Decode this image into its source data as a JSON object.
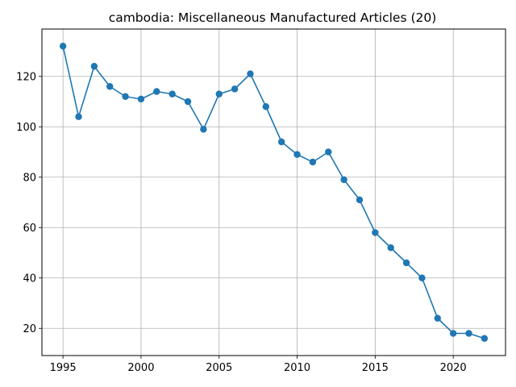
{
  "chart_data": {
    "type": "line",
    "title": "cambodia: Miscellaneous Manufactured Articles (20)",
    "xlabel": "",
    "ylabel": "",
    "x": [
      1995,
      1996,
      1997,
      1998,
      1999,
      2000,
      2001,
      2002,
      2003,
      2004,
      2005,
      2006,
      2007,
      2008,
      2009,
      2010,
      2011,
      2012,
      2013,
      2014,
      2015,
      2016,
      2017,
      2018,
      2019,
      2020,
      2021,
      2022
    ],
    "series": [
      {
        "values": [
          132,
          104,
          124,
          116,
          112,
          111,
          114,
          113,
          110,
          99,
          113,
          115,
          121,
          108,
          94,
          89,
          86,
          90,
          79,
          71,
          58,
          52,
          46,
          40,
          24,
          18,
          18,
          16
        ],
        "color": "#1f77b4"
      }
    ],
    "xlim": [
      1993.65,
      2023.35
    ],
    "ylim": [
      9.2,
      138.8
    ],
    "xticks": [
      1995,
      2000,
      2005,
      2010,
      2015,
      2020
    ],
    "yticks": [
      20,
      40,
      60,
      80,
      100,
      120
    ],
    "grid": true,
    "legend": "none"
  }
}
